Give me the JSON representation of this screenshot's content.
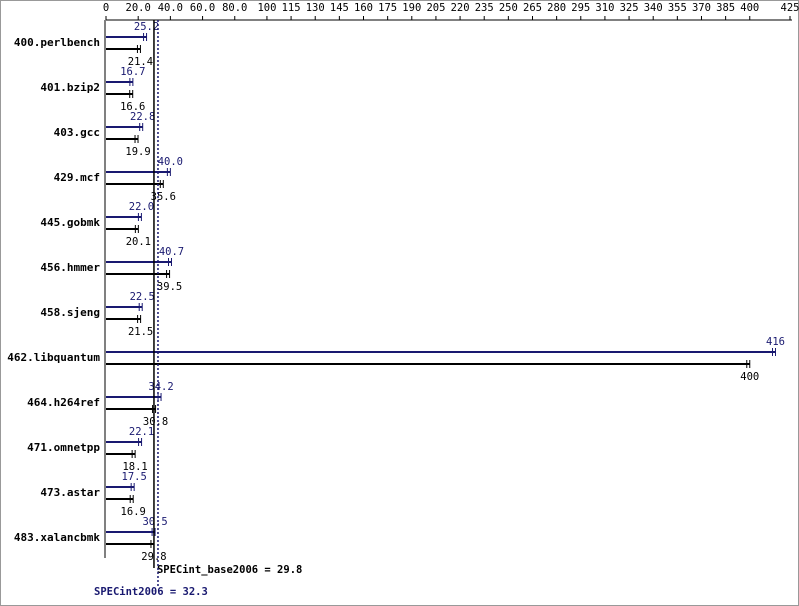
{
  "chart_data": {
    "type": "bar",
    "orientation": "horizontal",
    "categories": [
      "400.perlbench",
      "401.bzip2",
      "403.gcc",
      "429.mcf",
      "445.gobmk",
      "456.hmmer",
      "458.sjeng",
      "462.libquantum",
      "464.h264ref",
      "471.omnetpp",
      "473.astar",
      "483.xalancbmk"
    ],
    "series": [
      {
        "name": "SPECint2006",
        "color": "#191970",
        "values": [
          25.2,
          16.7,
          22.8,
          40.0,
          22.0,
          40.7,
          22.5,
          416,
          34.2,
          22.1,
          17.5,
          30.5
        ],
        "value_labels": [
          "25.2",
          "16.7",
          "22.8",
          "40.0",
          "22.0",
          "40.7",
          "22.5",
          "416",
          "34.2",
          "22.1",
          "17.5",
          "30.5"
        ]
      },
      {
        "name": "SPECint_base2006",
        "color": "#000000",
        "values": [
          21.4,
          16.6,
          19.9,
          35.6,
          20.1,
          39.5,
          21.5,
          400,
          30.8,
          18.1,
          16.9,
          29.8
        ],
        "value_labels": [
          "21.4",
          "16.6",
          "19.9",
          "35.6",
          "20.1",
          "39.5",
          "21.5",
          "400",
          "30.8",
          "18.1",
          "16.9",
          "29.8"
        ]
      }
    ],
    "xlim": [
      0,
      425
    ],
    "xticks": [
      0,
      {
        "value": 20,
        "label": "20.0"
      },
      {
        "value": 40,
        "label": "40.0"
      },
      {
        "value": 60,
        "label": "60.0"
      },
      {
        "value": 80,
        "label": "80.0"
      },
      100,
      115,
      130,
      145,
      160,
      175,
      190,
      205,
      220,
      235,
      250,
      265,
      280,
      295,
      310,
      325,
      340,
      355,
      370,
      385,
      400,
      425
    ],
    "reference_lines": [
      {
        "label": "SPECint_base2006 = 29.8",
        "value": 29.8,
        "color": "#000000"
      },
      {
        "label": "SPECint2006 = 32.3",
        "value": 32.3,
        "color": "#191970"
      }
    ]
  }
}
